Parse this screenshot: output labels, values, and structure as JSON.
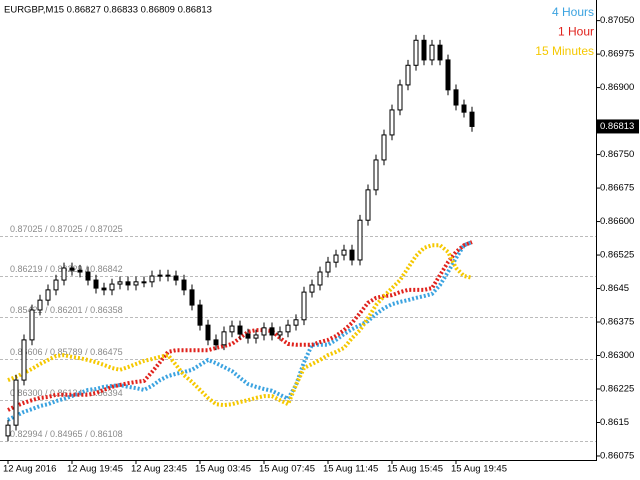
{
  "chart_data": {
    "type": "candlestick",
    "title": "EURGBP,M15  0.86827 0.86833 0.86809 0.86813",
    "categories": [
      "12 Aug 2016",
      null,
      null,
      null,
      null,
      null,
      null,
      null,
      "12 Aug 19:45",
      null,
      null,
      null,
      null,
      null,
      null,
      null,
      "12 Aug 23:45",
      null,
      null,
      null,
      null,
      null,
      null,
      null,
      "15 Aug 03:45",
      null,
      null,
      null,
      null,
      null,
      null,
      null,
      "15 Aug 07:45",
      null,
      null,
      null,
      null,
      null,
      null,
      null,
      "15 Aug 11:45",
      null,
      null,
      null,
      null,
      null,
      null,
      null,
      "15 Aug 15:45",
      null,
      null,
      null,
      null,
      null,
      null,
      null,
      "15 Aug 19:45",
      null,
      null
    ],
    "open": [
      0.8612,
      0.86144,
      0.86245,
      0.86335,
      0.86402,
      0.86424,
      0.86447,
      0.86469,
      0.86496,
      0.86491,
      0.86487,
      0.86469,
      0.86451,
      0.86447,
      0.8646,
      0.86465,
      0.86458,
      0.86465,
      0.86465,
      0.86478,
      0.8648,
      0.86478,
      0.86469,
      0.86447,
      0.86413,
      0.86368,
      0.86335,
      0.86324,
      0.86353,
      0.86366,
      0.86348,
      0.86339,
      0.86346,
      0.86362,
      0.86346,
      0.86353,
      0.86368,
      0.8638,
      0.86442,
      0.86458,
      0.86487,
      0.86509,
      0.86525,
      0.86536,
      0.86514,
      0.86603,
      0.86671,
      0.86738,
      0.86794,
      0.8685,
      0.86906,
      0.8695,
      0.87006,
      0.86962,
      0.86995,
      0.86962,
      0.86895,
      0.86861,
      0.86845
    ],
    "high": [
      0.86156,
      0.86257,
      0.86347,
      0.86414,
      0.86436,
      0.86459,
      0.86481,
      0.86508,
      0.86508,
      0.86503,
      0.86499,
      0.86481,
      0.86463,
      0.86472,
      0.86477,
      0.86477,
      0.86477,
      0.86477,
      0.8649,
      0.86492,
      0.86492,
      0.8649,
      0.86481,
      0.86459,
      0.86425,
      0.8638,
      0.86347,
      0.86365,
      0.86378,
      0.86378,
      0.8636,
      0.86358,
      0.86374,
      0.86374,
      0.86365,
      0.8638,
      0.86392,
      0.86454,
      0.8647,
      0.86499,
      0.86521,
      0.86537,
      0.86548,
      0.86548,
      0.86615,
      0.86683,
      0.8675,
      0.86806,
      0.86862,
      0.86918,
      0.86962,
      0.87018,
      0.87018,
      0.87007,
      0.87007,
      0.86974,
      0.86907,
      0.86873,
      0.86857
    ],
    "low": [
      0.86108,
      0.86132,
      0.86233,
      0.86323,
      0.8639,
      0.86412,
      0.86435,
      0.86457,
      0.86479,
      0.86475,
      0.86457,
      0.86439,
      0.86435,
      0.86435,
      0.86448,
      0.86446,
      0.86446,
      0.86453,
      0.86453,
      0.86466,
      0.86466,
      0.86457,
      0.86435,
      0.86401,
      0.86356,
      0.86323,
      0.86312,
      0.86312,
      0.86341,
      0.86336,
      0.86327,
      0.86327,
      0.86334,
      0.86334,
      0.86334,
      0.86341,
      0.86356,
      0.86368,
      0.8643,
      0.86446,
      0.86475,
      0.86497,
      0.86513,
      0.86502,
      0.86502,
      0.86591,
      0.86659,
      0.86726,
      0.86782,
      0.86838,
      0.86894,
      0.86938,
      0.8695,
      0.8695,
      0.8695,
      0.86883,
      0.86849,
      0.86833,
      0.86801
    ],
    "close": [
      0.86144,
      0.86245,
      0.86335,
      0.86402,
      0.86424,
      0.86447,
      0.86469,
      0.86496,
      0.86491,
      0.86487,
      0.86469,
      0.86451,
      0.86447,
      0.8646,
      0.86465,
      0.86458,
      0.86465,
      0.86465,
      0.86478,
      0.8648,
      0.86478,
      0.86469,
      0.86447,
      0.86413,
      0.86368,
      0.86335,
      0.86324,
      0.86353,
      0.86366,
      0.86348,
      0.86339,
      0.86346,
      0.86362,
      0.86346,
      0.86353,
      0.86368,
      0.8638,
      0.86442,
      0.86458,
      0.86487,
      0.86509,
      0.86525,
      0.86536,
      0.86514,
      0.86603,
      0.86671,
      0.86738,
      0.86794,
      0.8685,
      0.86906,
      0.8695,
      0.87006,
      0.86962,
      0.86995,
      0.86962,
      0.86895,
      0.86861,
      0.86845,
      0.86813
    ],
    "candle_color": "#000000",
    "series": [
      {
        "name": "4 Hours",
        "color": "#3ba3e0",
        "values": [
          0.86156,
          0.86165,
          0.86174,
          0.8618,
          0.86187,
          0.86191,
          0.86198,
          0.86203,
          0.86209,
          0.86216,
          0.86223,
          0.86225,
          0.8623,
          0.86232,
          0.86234,
          0.8623,
          0.86227,
          0.86223,
          0.86232,
          0.86245,
          0.86254,
          0.86259,
          0.86263,
          0.86268,
          0.86279,
          0.8629,
          0.86283,
          0.86274,
          0.86265,
          0.8625,
          0.86236,
          0.8623,
          0.86225,
          0.86221,
          0.86212,
          0.86203,
          0.86234,
          0.86285,
          0.86324,
          0.86324,
          0.86324,
          0.86335,
          0.86348,
          0.86359,
          0.86368,
          0.86377,
          0.86393,
          0.86406,
          0.86415,
          0.8642,
          0.86424,
          0.86429,
          0.86433,
          0.86438,
          0.86458,
          0.86487,
          0.86518,
          0.86547,
          0.86554
        ]
      },
      {
        "name": "1 Hour",
        "color": "#e0221c",
        "values": [
          0.86178,
          0.86187,
          0.86194,
          0.862,
          0.86205,
          0.86207,
          0.86212,
          0.86212,
          0.86212,
          0.86212,
          0.86212,
          0.86216,
          0.86223,
          0.8623,
          0.86234,
          0.86238,
          0.86241,
          0.86243,
          0.86263,
          0.86285,
          0.86308,
          0.86312,
          0.86312,
          0.86312,
          0.86312,
          0.86312,
          0.86317,
          0.86321,
          0.86326,
          0.86339,
          0.86353,
          0.86357,
          0.86357,
          0.86355,
          0.86339,
          0.86326,
          0.86324,
          0.86324,
          0.86324,
          0.8633,
          0.86335,
          0.86344,
          0.86357,
          0.86373,
          0.86395,
          0.86418,
          0.86429,
          0.86433,
          0.86435,
          0.86442,
          0.86447,
          0.86447,
          0.86447,
          0.86451,
          0.8648,
          0.86509,
          0.86532,
          0.86547,
          0.86554
        ]
      },
      {
        "name": "15 Minutes",
        "color": "#f5c800",
        "values": [
          0.86245,
          0.86252,
          0.86261,
          0.8627,
          0.86281,
          0.8629,
          0.86299,
          0.86301,
          0.86297,
          0.86294,
          0.8629,
          0.86285,
          0.86279,
          0.86272,
          0.86268,
          0.86274,
          0.86281,
          0.86288,
          0.86292,
          0.86297,
          0.86301,
          0.86279,
          0.86256,
          0.86241,
          0.86223,
          0.86205,
          0.86191,
          0.86189,
          0.86191,
          0.86196,
          0.862,
          0.86205,
          0.86209,
          0.86209,
          0.862,
          0.86191,
          0.86234,
          0.86272,
          0.86281,
          0.8629,
          0.86301,
          0.86308,
          0.86317,
          0.86339,
          0.86357,
          0.86384,
          0.86413,
          0.86433,
          0.86451,
          0.86469,
          0.86496,
          0.86523,
          0.86541,
          0.86547,
          0.86547,
          0.86532,
          0.86496,
          0.86478,
          0.86474
        ]
      }
    ],
    "levels": [
      {
        "label": "0.87025 / 0.87025 / 0.87025",
        "value": 0.86568
      },
      {
        "label": "0.86219 / 0.86229 / 0.86842",
        "value": 0.86478
      },
      {
        "label": "0.85421 / 0.86201 / 0.86358",
        "value": 0.86386
      },
      {
        "label": "0.86606 / 0.85789 / 0.86475",
        "value": 0.86292
      },
      {
        "label": "0.86300 / 0.86134 / 0.86394",
        "value": 0.862
      },
      {
        "label": "0.82994 / 0.84965 / 0.86108",
        "value": 0.86109
      }
    ],
    "last_price": 0.86813,
    "ylim": [
      0.86066,
      0.87085
    ],
    "yticks": [
      {
        "value": 0.8705,
        "label": "0.87050"
      },
      0.86975,
      {
        "value": 0.869,
        "label": "0.86900"
      },
      {
        "value": 0.8675,
        "label": "0.86750"
      },
      0.86675,
      {
        "value": 0.866,
        "label": "0.86600"
      },
      0.86525,
      0.8645,
      0.86375,
      {
        "value": 0.863,
        "label": "0.86300"
      },
      0.86225,
      0.8615,
      0.86075
    ]
  }
}
